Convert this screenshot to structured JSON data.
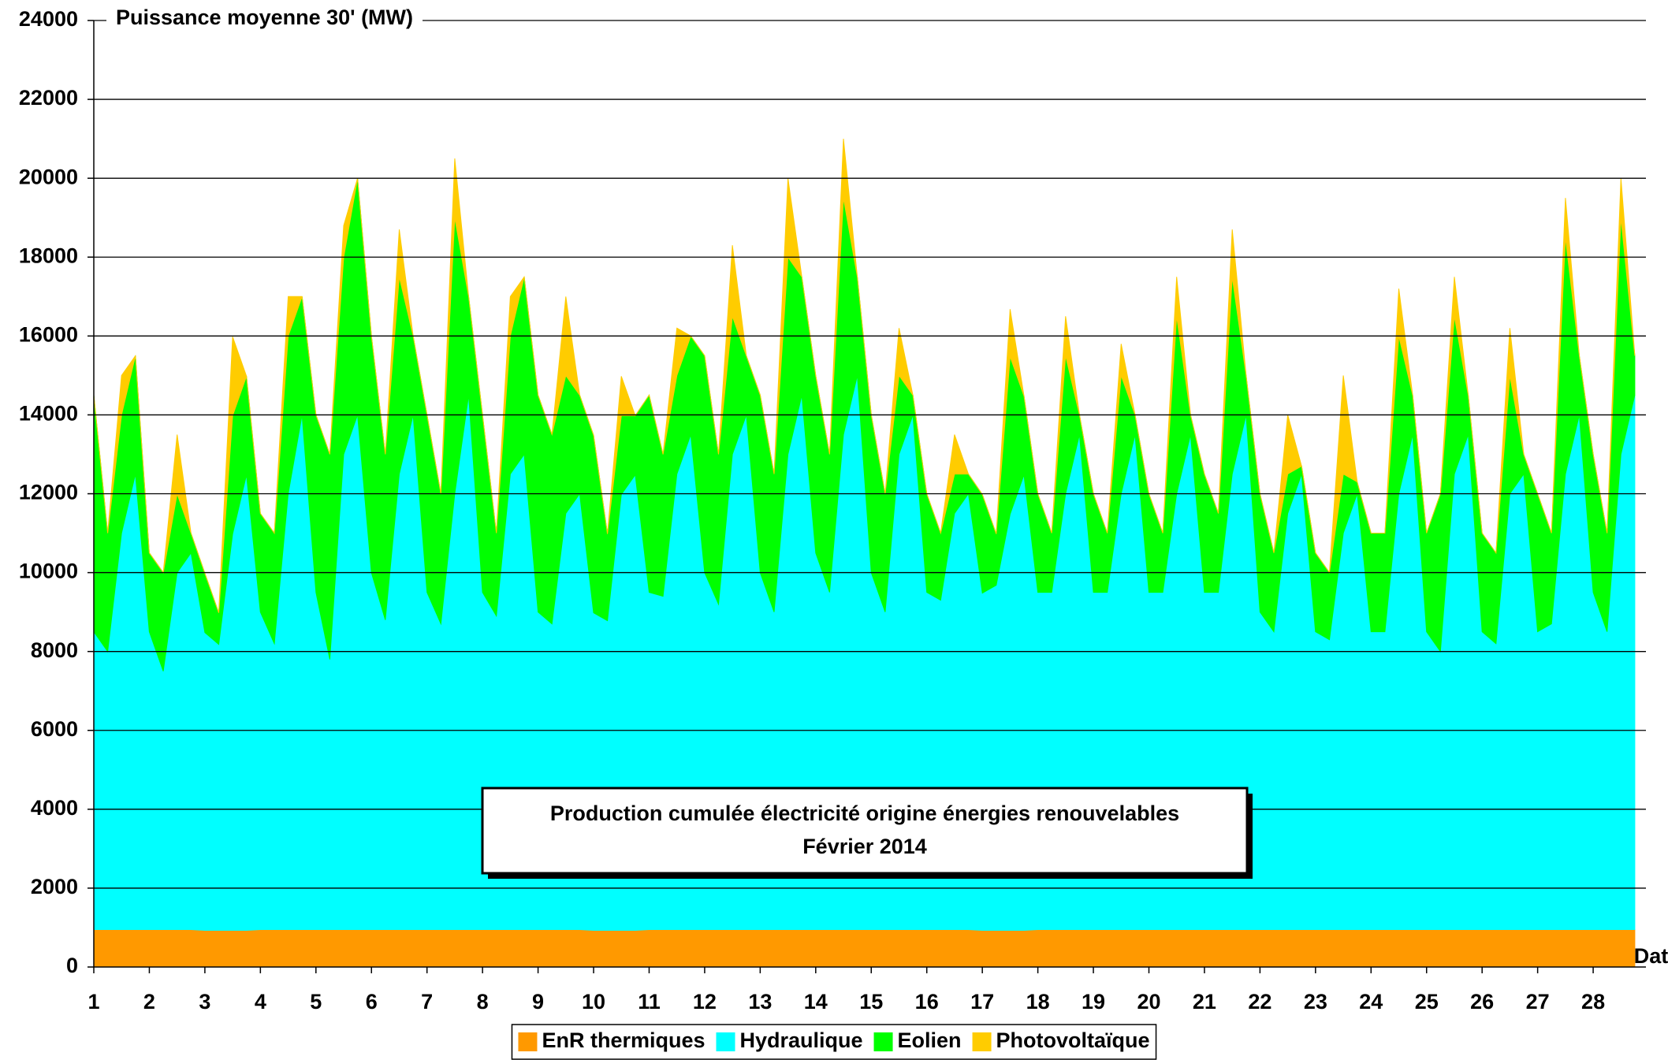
{
  "chart_data": {
    "type": "stacked_area",
    "title": "Production cumulée électricité origine énergies renouvelables",
    "subtitle": "Février 2014",
    "y_label": "Puissance moyenne 30' (MW)",
    "x_label": "Date",
    "ylim": [
      0,
      24000
    ],
    "yticks": [
      0,
      2000,
      4000,
      6000,
      8000,
      10000,
      12000,
      14000,
      16000,
      18000,
      20000,
      22000,
      24000
    ],
    "xlim": [
      1,
      28.95
    ],
    "xticks": [
      1,
      2,
      3,
      4,
      5,
      6,
      7,
      8,
      9,
      10,
      11,
      12,
      13,
      14,
      15,
      16,
      17,
      18,
      19,
      20,
      21,
      22,
      23,
      24,
      25,
      26,
      27,
      28
    ],
    "grid": true,
    "legend": "bottom",
    "x": [
      1,
      1.25,
      1.5,
      1.75,
      2,
      2.25,
      2.5,
      2.75,
      3,
      3.25,
      3.5,
      3.75,
      4,
      4.25,
      4.5,
      4.75,
      5,
      5.25,
      5.5,
      5.75,
      6,
      6.25,
      6.5,
      6.75,
      7,
      7.25,
      7.5,
      7.75,
      8,
      8.25,
      8.5,
      8.75,
      9,
      9.25,
      9.5,
      9.75,
      10,
      10.25,
      10.5,
      10.75,
      11,
      11.25,
      11.5,
      11.75,
      12,
      12.25,
      12.5,
      12.75,
      13,
      13.25,
      13.5,
      13.75,
      14,
      14.25,
      14.5,
      14.75,
      15,
      15.25,
      15.5,
      15.75,
      16,
      16.25,
      16.5,
      16.75,
      17,
      17.25,
      17.5,
      17.75,
      18,
      18.25,
      18.5,
      18.75,
      19,
      19.25,
      19.5,
      19.75,
      20,
      20.25,
      20.5,
      20.75,
      21,
      21.25,
      21.5,
      21.75,
      22,
      22.25,
      22.5,
      22.75,
      23,
      23.25,
      23.5,
      23.75,
      24,
      24.25,
      24.5,
      24.75,
      25,
      25.25,
      25.5,
      25.75,
      26,
      26.25,
      26.5,
      26.75,
      27,
      27.25,
      27.5,
      27.75,
      28,
      28.25,
      28.5,
      28.75
    ],
    "series": [
      {
        "name": "EnR thermiques",
        "color": "#ff9900",
        "values": [
          950,
          950,
          950,
          950,
          950,
          950,
          950,
          950,
          930,
          930,
          930,
          930,
          950,
          950,
          950,
          950,
          950,
          950,
          950,
          950,
          950,
          950,
          950,
          950,
          950,
          950,
          950,
          950,
          950,
          950,
          950,
          950,
          950,
          950,
          950,
          950,
          930,
          930,
          930,
          930,
          950,
          950,
          950,
          950,
          950,
          950,
          950,
          950,
          950,
          950,
          950,
          950,
          950,
          950,
          950,
          950,
          950,
          950,
          950,
          950,
          950,
          950,
          950,
          950,
          930,
          930,
          930,
          930,
          950,
          950,
          950,
          950,
          950,
          950,
          950,
          950,
          950,
          950,
          950,
          950,
          950,
          950,
          950,
          950,
          950,
          950,
          950,
          950,
          950,
          950,
          950,
          950,
          950,
          950,
          950,
          950,
          950,
          950,
          950,
          950,
          950,
          950,
          950,
          950,
          950,
          950,
          950,
          950,
          950,
          950,
          950,
          950
        ]
      },
      {
        "name": "Hydraulique",
        "color": "#00ffff",
        "values": [
          7550,
          7050,
          10050,
          11550,
          7550,
          6550,
          9050,
          9550,
          7550,
          7250,
          10050,
          11550,
          8050,
          7250,
          11050,
          13050,
          8550,
          6850,
          12050,
          13050,
          9050,
          7850,
          11550,
          13050,
          8550,
          7750,
          11050,
          13550,
          8550,
          7950,
          11550,
          12050,
          8050,
          7750,
          10550,
          11050,
          8050,
          7850,
          11050,
          11550,
          8550,
          8450,
          11550,
          12550,
          9050,
          8250,
          12050,
          13050,
          9050,
          8050,
          12050,
          13550,
          9550,
          8550,
          12550,
          14050,
          9050,
          8050,
          12050,
          13050,
          8550,
          8350,
          10550,
          11050,
          8550,
          8750,
          10550,
          11550,
          8550,
          8550,
          11050,
          12550,
          8550,
          8550,
          11050,
          12550,
          8550,
          8550,
          11050,
          12550,
          8550,
          8550,
          11550,
          13050,
          8050,
          7550,
          10550,
          11550,
          7550,
          7350,
          10050,
          11050,
          7550,
          7550,
          11050,
          12550,
          7550,
          7050,
          11550,
          12550,
          7550,
          7250,
          11050,
          11550,
          7550,
          7750,
          11550,
          13050,
          8550,
          7550,
          12050,
          13550
        ]
      },
      {
        "name": "Eolien",
        "color": "#00ff00",
        "values": [
          6000,
          3000,
          3000,
          3000,
          2000,
          2500,
          2000,
          500,
          1500,
          800,
          3000,
          2500,
          2500,
          2800,
          4000,
          3000,
          4500,
          5200,
          5000,
          6000,
          6000,
          4200,
          5000,
          2000,
          4500,
          3300,
          7000,
          2500,
          4500,
          2100,
          3500,
          4500,
          5500,
          4800,
          3500,
          2500,
          4500,
          2200,
          2000,
          1500,
          5000,
          3600,
          2500,
          2500,
          5500,
          3800,
          3500,
          1500,
          4500,
          3500,
          5000,
          3000,
          4500,
          3500,
          6000,
          2500,
          4000,
          3000,
          2000,
          500,
          2500,
          1700,
          1000,
          500,
          2500,
          1300,
          4000,
          2000,
          2500,
          1500,
          3500,
          500,
          2500,
          1500,
          3000,
          500,
          2500,
          1500,
          4500,
          500,
          3000,
          2000,
          5000,
          1000,
          3000,
          2000,
          1000,
          200,
          2000,
          1700,
          1500,
          300,
          2500,
          2500,
          4000,
          1000,
          2500,
          4000,
          4000,
          1000,
          2500,
          2300,
          3000,
          500,
          3500,
          2300,
          6000,
          1500,
          3500,
          2500,
          6000,
          1000
        ]
      },
      {
        "name": "Photovoltaïque",
        "color": "#ffcc00",
        "values": [
          0,
          0,
          1000,
          0,
          0,
          0,
          1500,
          0,
          0,
          0,
          2000,
          0,
          0,
          0,
          1000,
          0,
          0,
          0,
          800,
          0,
          0,
          0,
          1200,
          0,
          0,
          0,
          1500,
          0,
          0,
          0,
          1000,
          0,
          0,
          0,
          2000,
          0,
          0,
          0,
          1000,
          0,
          0,
          0,
          1200,
          0,
          0,
          0,
          1800,
          0,
          0,
          0,
          2000,
          0,
          0,
          0,
          1500,
          0,
          0,
          0,
          1200,
          0,
          0,
          0,
          1000,
          0,
          0,
          0,
          1200,
          0,
          0,
          0,
          1000,
          0,
          0,
          0,
          800,
          0,
          0,
          0,
          1000,
          0,
          0,
          0,
          1200,
          0,
          0,
          0,
          1500,
          0,
          0,
          0,
          2500,
          0,
          0,
          0,
          1200,
          0,
          0,
          0,
          1000,
          0,
          0,
          0,
          1200,
          0,
          0,
          0,
          1000,
          0,
          0,
          0,
          1000,
          0
        ]
      }
    ]
  }
}
